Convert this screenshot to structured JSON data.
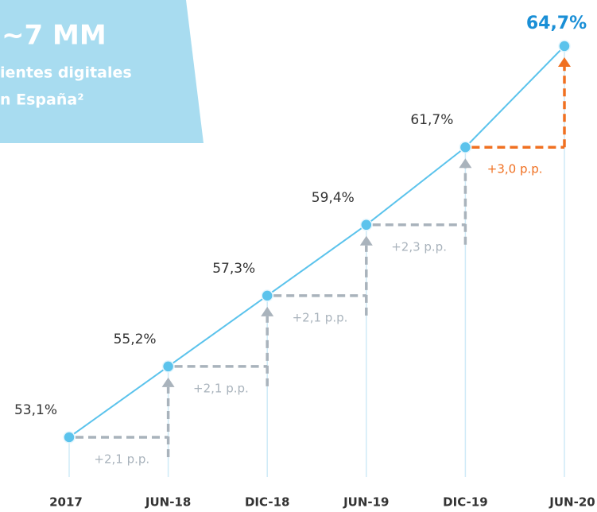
{
  "chart_data": {
    "type": "line",
    "box_title": "~7 MM",
    "box_lines": [
      "ientes digitales",
      "n España²"
    ],
    "categories": [
      "2017",
      "JUN-18",
      "DIC-18",
      "JUN-19",
      "DIC-19",
      "JUN-20"
    ],
    "values": [
      53.1,
      55.2,
      57.3,
      59.4,
      61.7,
      64.7
    ],
    "value_labels": [
      "53,1%",
      "55,2%",
      "57,3%",
      "59,4%",
      "61,7%",
      "64,7%"
    ],
    "annotations": [
      "+2,1 p.p.",
      "+2,1 p.p.",
      "+2,1 p.p.",
      "+2,3 p.p.",
      "+3,0 p.p."
    ],
    "annotation_colors": [
      "#a9b3bc",
      "#a9b3bc",
      "#a9b3bc",
      "#a9b3bc",
      "#f07021"
    ],
    "color": "#5bc3ec",
    "highlight_color": "#1a8fd6"
  }
}
